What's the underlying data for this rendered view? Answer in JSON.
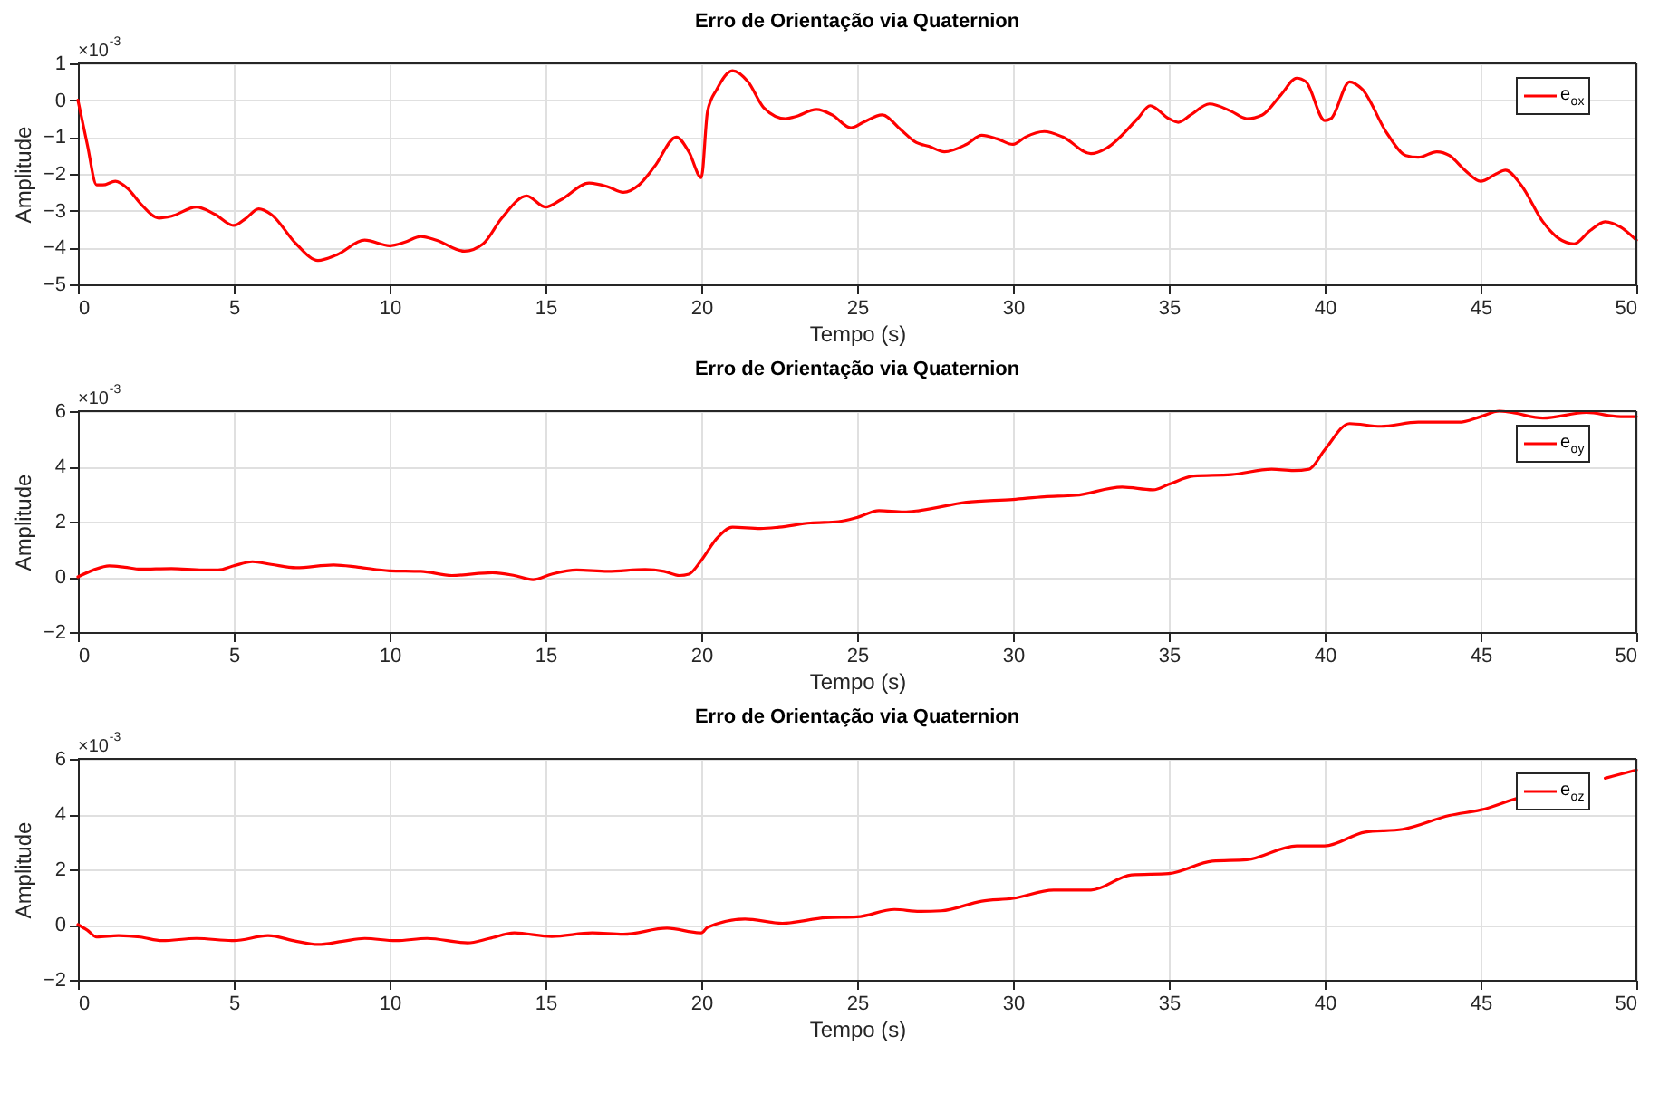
{
  "chart_data": [
    {
      "type": "line",
      "title": "Erro de Orientação via Quaternion",
      "xlabel": "Tempo (s)",
      "ylabel": "Amplitude",
      "annotations": [
        "×10$^{-3}$"
      ],
      "xlim": [
        0,
        50
      ],
      "xticks": [
        0,
        5,
        10,
        15,
        20,
        25,
        30,
        35,
        40,
        45,
        50
      ],
      "ylim": [
        -5,
        1
      ],
      "yticks": [
        -5,
        -4,
        -3,
        -2,
        -1,
        0,
        1
      ],
      "grid": true,
      "legend": "top right",
      "line_style": "solid",
      "series": [
        {
          "name": "e$_{ox}$",
          "color": "#ff0000",
          "x": [
            0,
            0.3,
            0.6,
            0.8,
            1.2,
            1.6,
            2.0,
            2.6,
            3.0,
            3.8,
            4.4,
            5.0,
            5.4,
            5.8,
            6.2,
            7.0,
            7.7,
            8.3,
            9.2,
            10.0,
            10.5,
            11.0,
            11.5,
            12.4,
            13.0,
            13.6,
            14.4,
            15.0,
            15.5,
            16.4,
            17.0,
            17.5,
            18.0,
            18.5,
            19.2,
            19.6,
            20.0,
            20.2,
            20.5,
            21.0,
            21.5,
            22.0,
            22.7,
            23.0,
            23.7,
            24.2,
            24.8,
            25.2,
            25.8,
            26.4,
            26.9,
            27.3,
            27.8,
            28.5,
            29.0,
            29.5,
            30.0,
            30.4,
            31.0,
            31.6,
            32.5,
            33.0,
            34.0,
            34.4,
            35.0,
            35.3,
            35.7,
            36.3,
            37.0,
            37.5,
            38.0,
            38.6,
            39.1,
            39.4,
            40.0,
            40.2,
            40.8,
            41.2,
            42.0,
            42.6,
            43.0,
            43.6,
            44.0,
            44.5,
            45.0,
            45.5,
            45.8,
            46.3,
            47.0,
            47.5,
            48.0,
            48.5,
            49.0,
            49.5,
            50.0
          ],
          "values": [
            0,
            -1.2,
            -2.3,
            -2.3,
            -2.2,
            -2.4,
            -2.8,
            -3.2,
            -3.15,
            -2.9,
            -3.1,
            -3.4,
            -3.2,
            -2.95,
            -3.1,
            -3.9,
            -4.35,
            -4.2,
            -3.8,
            -3.95,
            -3.85,
            -3.7,
            -3.8,
            -4.1,
            -3.9,
            -3.2,
            -2.6,
            -2.9,
            -2.7,
            -2.25,
            -2.35,
            -2.5,
            -2.3,
            -1.8,
            -1.0,
            -1.4,
            -2.1,
            -0.3,
            0.3,
            0.8,
            0.5,
            -0.2,
            -0.5,
            -0.45,
            -0.25,
            -0.4,
            -0.75,
            -0.6,
            -0.4,
            -0.8,
            -1.15,
            -1.25,
            -1.4,
            -1.2,
            -0.95,
            -1.05,
            -1.2,
            -1.0,
            -0.85,
            -1.0,
            -1.45,
            -1.3,
            -0.5,
            -0.15,
            -0.5,
            -0.6,
            -0.4,
            -0.1,
            -0.3,
            -0.5,
            -0.4,
            0.15,
            0.6,
            0.5,
            -0.55,
            -0.5,
            0.5,
            0.3,
            -0.9,
            -1.5,
            -1.55,
            -1.4,
            -1.5,
            -1.9,
            -2.2,
            -2.0,
            -1.9,
            -2.3,
            -3.3,
            -3.75,
            -3.9,
            -3.55,
            -3.3,
            -3.45,
            -3.8
          ]
        }
      ]
    },
    {
      "type": "line",
      "title": "Erro de Orientação via Quaternion",
      "xlabel": "Tempo (s)",
      "ylabel": "Amplitude",
      "annotations": [
        "×10$^{-3}$"
      ],
      "xlim": [
        0,
        50
      ],
      "xticks": [
        0,
        5,
        10,
        15,
        20,
        25,
        30,
        35,
        40,
        45,
        50
      ],
      "ylim": [
        -2,
        6
      ],
      "yticks": [
        -2,
        0,
        2,
        4,
        6
      ],
      "grid": true,
      "legend": "top right",
      "line_style": "solid",
      "series": [
        {
          "name": "e$_{oy}$",
          "color": "#ff0000",
          "x": [
            0,
            0.5,
            1.0,
            1.5,
            2.0,
            3.0,
            4.0,
            4.5,
            5.0,
            5.6,
            6.2,
            7.0,
            8.2,
            9.0,
            10.0,
            11.0,
            12.0,
            13.3,
            14.0,
            14.6,
            15.2,
            16.0,
            17.0,
            18.2,
            18.8,
            19.3,
            19.6,
            20.0,
            20.5,
            21.0,
            21.9,
            22.5,
            23.5,
            24.4,
            25.0,
            25.7,
            26.5,
            27.0,
            28.5,
            30.0,
            31.0,
            32.0,
            33.5,
            34.5,
            35.0,
            35.8,
            37.0,
            38.3,
            39.0,
            39.5,
            40.0,
            40.8,
            41.8,
            43.0,
            44.3,
            45.0,
            45.6,
            46.0,
            47.0,
            48.4,
            49.5,
            50.0
          ],
          "values": [
            0,
            0.25,
            0.4,
            0.35,
            0.28,
            0.3,
            0.25,
            0.25,
            0.4,
            0.55,
            0.45,
            0.33,
            0.43,
            0.35,
            0.22,
            0.2,
            0.05,
            0.15,
            0.05,
            -0.1,
            0.1,
            0.25,
            0.2,
            0.27,
            0.2,
            0.05,
            0.1,
            0.6,
            1.4,
            1.8,
            1.75,
            1.8,
            1.95,
            2.0,
            2.15,
            2.4,
            2.35,
            2.4,
            2.7,
            2.8,
            2.9,
            2.95,
            3.25,
            3.15,
            3.35,
            3.65,
            3.7,
            3.9,
            3.85,
            3.9,
            4.6,
            5.55,
            5.45,
            5.6,
            5.6,
            5.8,
            6.0,
            5.95,
            5.75,
            5.95,
            5.8,
            5.8
          ]
        }
      ]
    },
    {
      "type": "line",
      "title": "Erro de Orientação via Quaternion",
      "xlabel": "Tempo (s)",
      "ylabel": "Amplitude",
      "annotations": [
        "×10$^{-3}$"
      ],
      "xlim": [
        0,
        50
      ],
      "xticks": [
        0,
        5,
        10,
        15,
        20,
        25,
        30,
        35,
        40,
        45,
        50
      ],
      "ylim": [
        -2,
        6
      ],
      "yticks": [
        -2,
        0,
        2,
        4,
        6
      ],
      "grid": true,
      "legend": "top right",
      "line_style": "solid",
      "series": [
        {
          "name": "e$_{oz}$",
          "color": "#ff0000",
          "x": [
            0,
            0.3,
            0.6,
            1.3,
            2.0,
            2.7,
            3.8,
            5.0,
            6.1,
            7.0,
            7.7,
            8.5,
            9.2,
            10.2,
            11.2,
            12.5,
            13.2,
            14.0,
            15.2,
            16.5,
            17.5,
            18.9,
            20.0,
            20.2,
            21.4,
            22.6,
            24.0,
            25.0,
            26.2,
            27.0,
            27.7,
            29.0,
            30.0,
            31.3,
            32.5,
            33.8,
            35.0,
            36.4,
            37.5,
            39.1,
            40.0,
            41.3,
            42.5,
            44.0,
            45.0,
            46.5,
            47.0,
            48.0,
            49.0,
            50.0
          ],
          "values": [
            0,
            -0.2,
            -0.45,
            -0.4,
            -0.45,
            -0.58,
            -0.5,
            -0.58,
            -0.4,
            -0.6,
            -0.72,
            -0.6,
            -0.5,
            -0.58,
            -0.5,
            -0.66,
            -0.5,
            -0.3,
            -0.43,
            -0.3,
            -0.35,
            -0.13,
            -0.3,
            -0.1,
            0.2,
            0.05,
            0.25,
            0.28,
            0.55,
            0.48,
            0.5,
            0.85,
            0.95,
            1.25,
            1.25,
            1.8,
            1.85,
            2.3,
            2.35,
            2.85,
            2.85,
            3.35,
            3.45,
            3.95,
            4.15,
            4.65,
            4.7,
            null,
            5.3,
            5.6
          ]
        }
      ]
    }
  ]
}
